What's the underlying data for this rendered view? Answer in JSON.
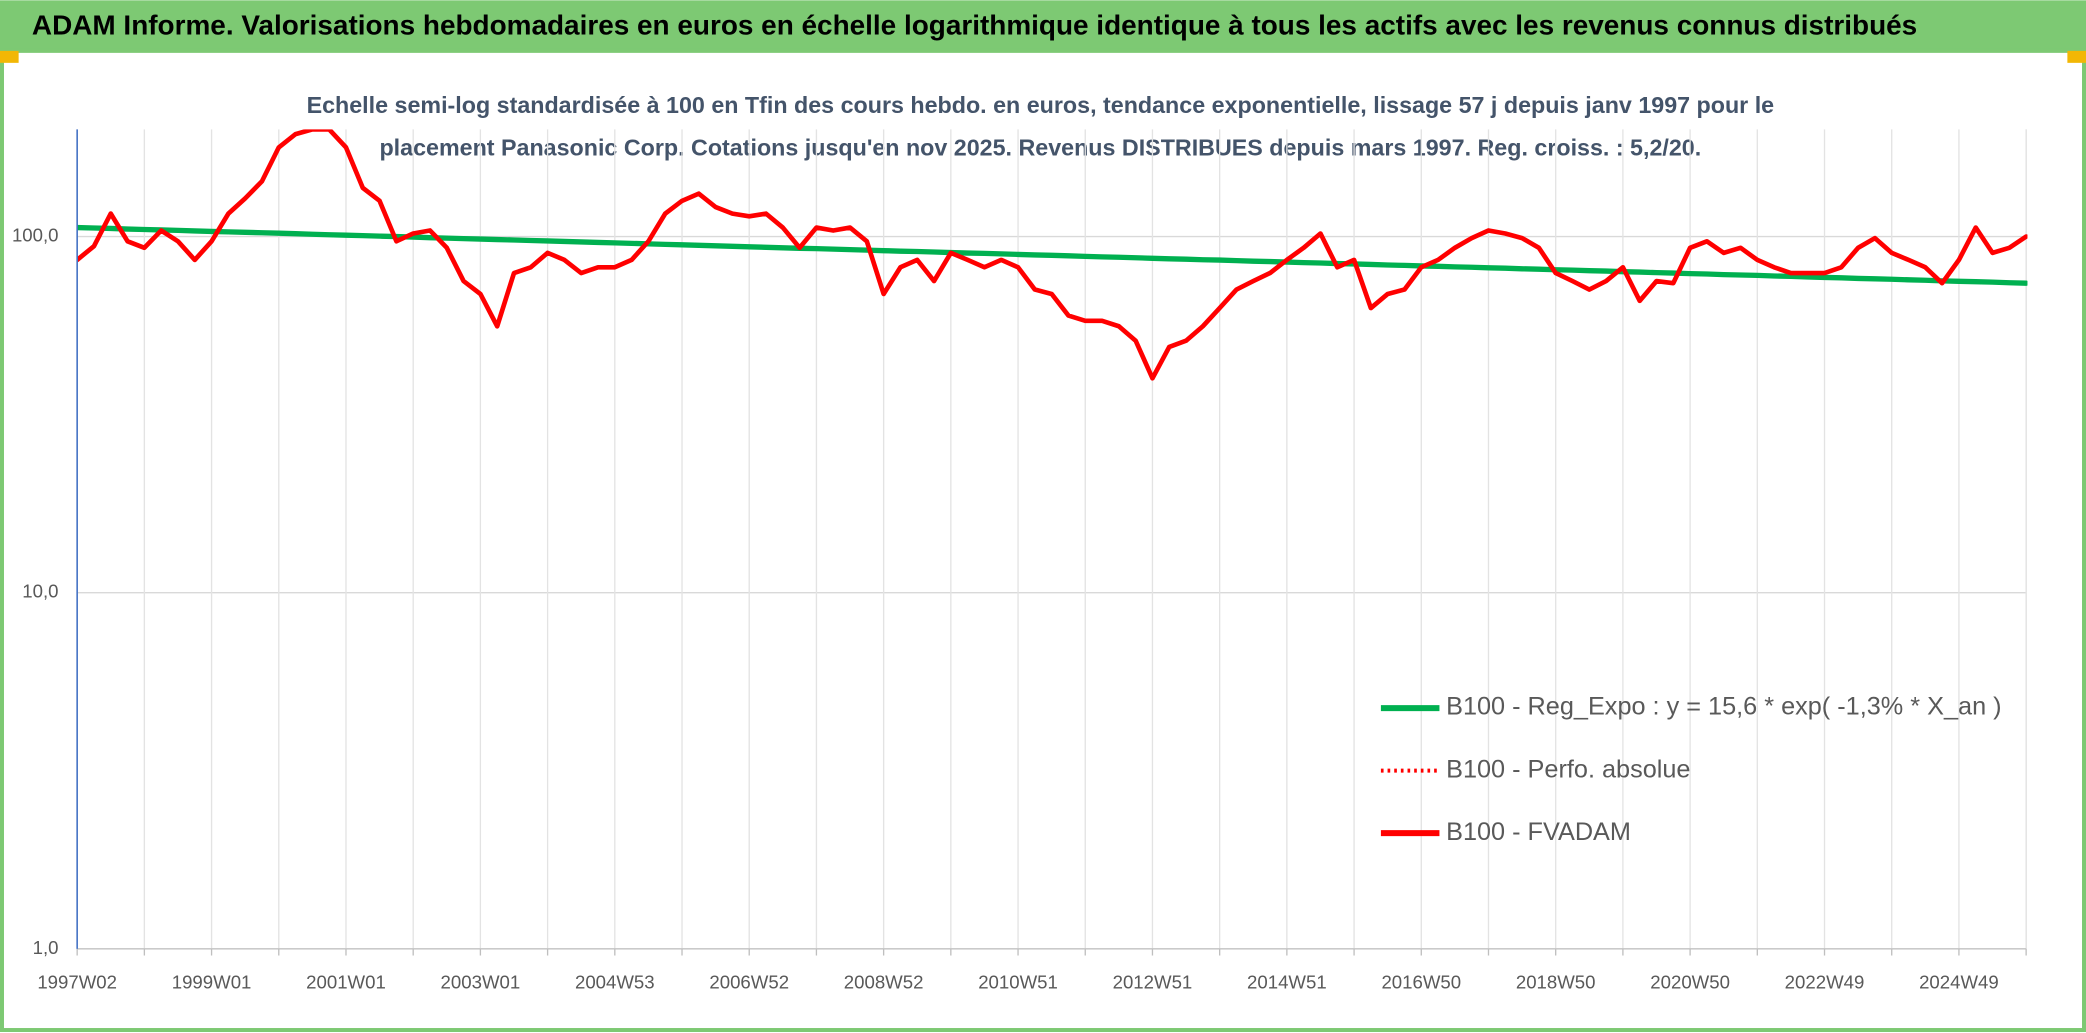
{
  "chart_data": {
    "type": "line",
    "header": "ADAM Informe. Valorisations hebdomadaires en euros en échelle logarithmique identique à tous les actifs avec les revenus connus distribués",
    "title": [
      "Echelle semi-log standardisée à 100 en Tfin des cours hebdo. en euros, tendance exponentielle, lissage 57 j depuis janv 1997 pour le",
      "placement Panasonic Corp. Cotations jusqu'en nov 2025. Revenus DISTRIBUES depuis mars 1997. Reg. croiss. : 5,2/20."
    ],
    "log_scale": true,
    "ylim": [
      1,
      200
    ],
    "yticks": [
      {
        "value": 1,
        "label": "1,0"
      },
      {
        "value": 10,
        "label": "10,0"
      },
      {
        "value": 100,
        "label": "100,0"
      }
    ],
    "grid": true,
    "legend": "right",
    "categories": [
      "1997W02",
      null,
      null,
      null,
      null,
      null,
      null,
      null,
      "1999W01",
      null,
      null,
      null,
      null,
      null,
      null,
      null,
      "2001W01",
      null,
      null,
      null,
      null,
      null,
      null,
      null,
      "2003W01",
      null,
      null,
      null,
      null,
      null,
      null,
      null,
      "2004W53",
      null,
      null,
      null,
      null,
      null,
      null,
      null,
      "2006W52",
      null,
      null,
      null,
      null,
      null,
      null,
      null,
      "2008W52",
      null,
      null,
      null,
      null,
      null,
      null,
      null,
      "2010W51",
      null,
      null,
      null,
      null,
      null,
      null,
      null,
      "2012W51",
      null,
      null,
      null,
      null,
      null,
      null,
      null,
      "2014W51",
      null,
      null,
      null,
      null,
      null,
      null,
      null,
      "2016W50",
      null,
      null,
      null,
      null,
      null,
      null,
      null,
      "2018W50",
      null,
      null,
      null,
      null,
      null,
      null,
      null,
      "2020W50",
      null,
      null,
      null,
      null,
      null,
      null,
      null,
      "2022W49",
      null,
      null,
      null,
      null,
      null,
      null,
      null,
      "2024W49",
      null,
      null,
      null,
      null
    ],
    "series": [
      {
        "name": "B100 - Reg_Expo : y = 15,6 * exp( -1,3% *  X_an )",
        "color": "#00b050",
        "dash": "solid",
        "values": [
          106.0,
          105.7,
          105.4,
          105.0,
          104.7,
          104.4,
          104.1,
          103.7,
          103.4,
          103.1,
          102.8,
          102.5,
          102.2,
          101.9,
          101.5,
          101.2,
          100.9,
          100.6,
          100.3,
          100.0,
          99.7,
          99.3,
          99.0,
          98.7,
          98.4,
          98.1,
          97.8,
          97.5,
          97.2,
          96.9,
          96.6,
          96.3,
          96.0,
          95.7,
          95.4,
          95.1,
          94.8,
          94.5,
          94.2,
          93.9,
          93.6,
          93.3,
          93.0,
          92.7,
          92.5,
          92.2,
          91.9,
          91.6,
          91.3,
          91.0,
          90.8,
          90.5,
          90.2,
          89.9,
          89.7,
          89.4,
          89.1,
          88.8,
          88.6,
          88.3,
          88.0,
          87.7,
          87.5,
          87.2,
          86.9,
          86.6,
          86.4,
          86.1,
          85.9,
          85.6,
          85.3,
          85.1,
          84.8,
          84.5,
          84.3,
          84.0,
          83.8,
          83.5,
          83.2,
          83.0,
          82.7,
          82.5,
          82.2,
          82.0,
          81.7,
          81.5,
          81.2,
          81.0,
          80.7,
          80.5,
          80.2,
          80.0,
          79.7,
          79.5,
          79.2,
          79.0,
          78.7,
          78.5,
          78.2,
          78.0,
          77.8,
          77.5,
          77.3,
          77.0,
          76.8,
          76.6,
          76.3,
          76.1,
          75.9,
          75.6,
          75.4,
          75.1,
          74.9,
          74.7,
          74.5,
          74.2,
          74.0
        ]
      },
      {
        "name": "B100 - Perfo. absolue",
        "color": "#ff0000",
        "dash": "dotted"
      },
      {
        "name": "B100 - FVADAM",
        "color": "#ff0000",
        "dash": "solid",
        "values": [
          86,
          94,
          116,
          97,
          93,
          104,
          97,
          86,
          97,
          116,
          128,
          143,
          178,
          194,
          200,
          200,
          178,
          137,
          126,
          97,
          102,
          104,
          93,
          75,
          69,
          56,
          79,
          82,
          90,
          86,
          79,
          82,
          82,
          86,
          97,
          116,
          126,
          132,
          121,
          116,
          114,
          116,
          106,
          93,
          106,
          104,
          106,
          97,
          69,
          82,
          86,
          75,
          90,
          86,
          82,
          86,
          82,
          71,
          69,
          60,
          58,
          58,
          56,
          51,
          40,
          49,
          51,
          56,
          63,
          71,
          75,
          79,
          86,
          93,
          102,
          82,
          86,
          63,
          69,
          71,
          82,
          86,
          93,
          99,
          104,
          102,
          99,
          93,
          79,
          75,
          71,
          75,
          82,
          66,
          75,
          74,
          93,
          97,
          90,
          93,
          86,
          82,
          79,
          79,
          79,
          82,
          93,
          99,
          90,
          86,
          82,
          74,
          86,
          106,
          90,
          93,
          100
        ]
      }
    ]
  }
}
